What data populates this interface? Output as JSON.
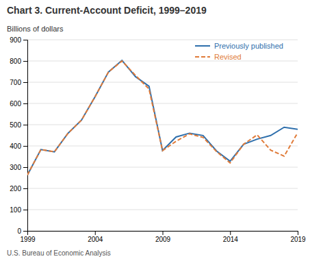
{
  "chart_data": {
    "type": "line",
    "title": "Chart 3. Current-Account Deficit, 1999–2019",
    "ylabel": "Billions of dollars",
    "footnote": "U.S. Bureau of Economic Analysis",
    "x": [
      1999,
      2000,
      2001,
      2002,
      2003,
      2004,
      2005,
      2006,
      2007,
      2008,
      2009,
      2010,
      2011,
      2012,
      2013,
      2014,
      2015,
      2016,
      2017,
      2018,
      2019
    ],
    "series": [
      {
        "name": "Previously published",
        "color": "#2e6fac",
        "line_style": "solid",
        "values": [
          263,
          383,
          372,
          459,
          521,
          631,
          748,
          803,
          726,
          681,
          378,
          442,
          460,
          449,
          376,
          328,
          408,
          432,
          449,
          488,
          478
        ]
      },
      {
        "name": "Revised",
        "color": "#e07b39",
        "line_style": "dashed",
        "values": [
          263,
          383,
          372,
          459,
          521,
          631,
          748,
          800,
          732,
          668,
          378,
          422,
          457,
          440,
          373,
          320,
          408,
          452,
          380,
          352,
          462
        ]
      }
    ],
    "xlim": [
      1999,
      2019
    ],
    "xticks": [
      1999,
      2004,
      2009,
      2014,
      2019
    ],
    "ylim": [
      0,
      900
    ],
    "yticks": [
      0,
      100,
      200,
      300,
      400,
      500,
      600,
      700,
      800,
      900
    ],
    "grid": true,
    "legend": "upper right"
  }
}
